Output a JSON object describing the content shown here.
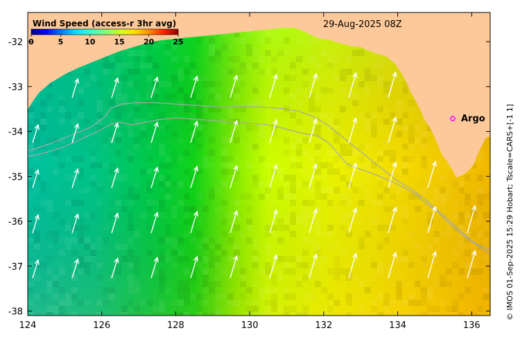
{
  "map": {
    "legend_title": "Wind Speed (access-r 3hr avg)",
    "date_label": "29-Aug-2025 08Z",
    "credit": "© IMOS 01-Sep-2025 15:29 Hobart; Tscale=CARS+[-1 1]",
    "argo_label": "Argo",
    "colorbar": {
      "ticks": [
        "0",
        "5",
        "10",
        "15",
        "20",
        "25"
      ],
      "min": 0,
      "max": 25,
      "colors": [
        "#00008f",
        "#0000ff",
        "#0070ff",
        "#00dfff",
        "#30ffcf",
        "#7fff80",
        "#cfff30",
        "#ffdf00",
        "#ff8f00",
        "#ff2000",
        "#8f0000"
      ]
    },
    "x_axis": {
      "ticks": [
        "124",
        "126",
        "128",
        "130",
        "132",
        "134",
        "136"
      ],
      "min": 124,
      "max": 136.5
    },
    "y_axis": {
      "ticks": [
        "-32",
        "-33",
        "-34",
        "-35",
        "-36",
        "-37",
        "-38"
      ],
      "min": -38.1,
      "max": -31.35
    },
    "colors": {
      "land": "#fdc99a",
      "arrow": "#ffffff",
      "contour": "#a8a8a8",
      "argo_marker": "#ff00ff"
    }
  }
}
